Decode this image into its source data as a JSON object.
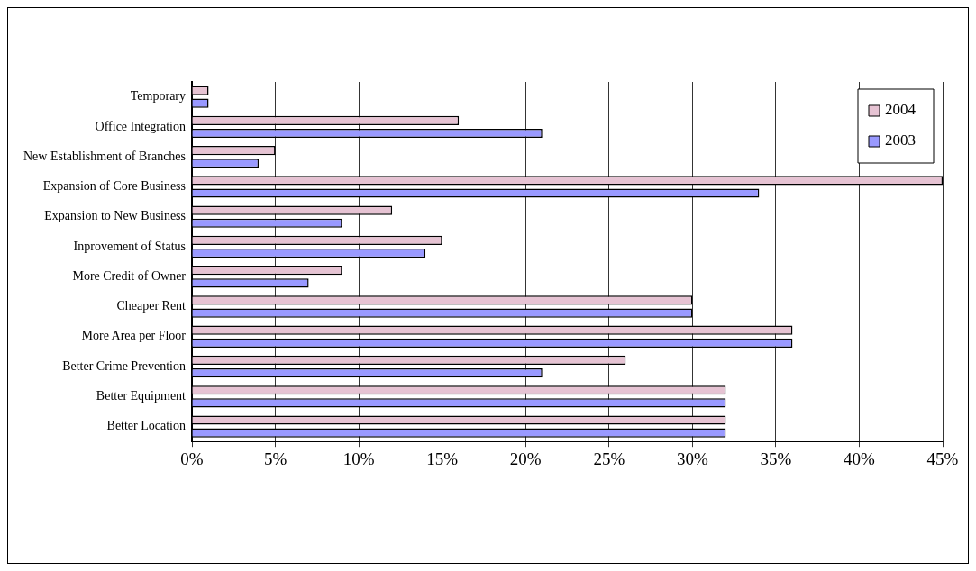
{
  "chart_data": {
    "type": "bar",
    "orientation": "horizontal",
    "categories": [
      "Temporary",
      "Office Integration",
      "New Establishment of Branches",
      "Expansion of Core Business",
      "Expansion to New Business",
      "Inprovement of Status",
      "More Credit of Owner",
      "Cheaper Rent",
      "More Area per Floor",
      "Better Crime Prevention",
      "Better Equipment",
      "Better Location"
    ],
    "series": [
      {
        "name": "2004",
        "color": "#e6c3d3",
        "values": [
          1,
          16,
          5,
          45,
          12,
          15,
          9,
          30,
          36,
          26,
          32,
          32
        ]
      },
      {
        "name": "2003",
        "color": "#9999ff",
        "values": [
          1,
          21,
          4,
          34,
          9,
          14,
          7,
          30,
          36,
          21,
          32,
          32
        ]
      }
    ],
    "xlim": [
      0,
      45
    ],
    "xticks": [
      {
        "value": 0,
        "label": "0%"
      },
      {
        "value": 5,
        "label": "5%"
      },
      {
        "value": 10,
        "label": "10%"
      },
      {
        "value": 15,
        "label": "15%"
      },
      {
        "value": 20,
        "label": "20%"
      },
      {
        "value": 25,
        "label": "25%"
      },
      {
        "value": 30,
        "label": "30%"
      },
      {
        "value": 35,
        "label": "35%"
      },
      {
        "value": 40,
        "label": "40%"
      },
      {
        "value": 45,
        "label": "45%"
      }
    ],
    "grid": "x",
    "legend": "top right"
  }
}
